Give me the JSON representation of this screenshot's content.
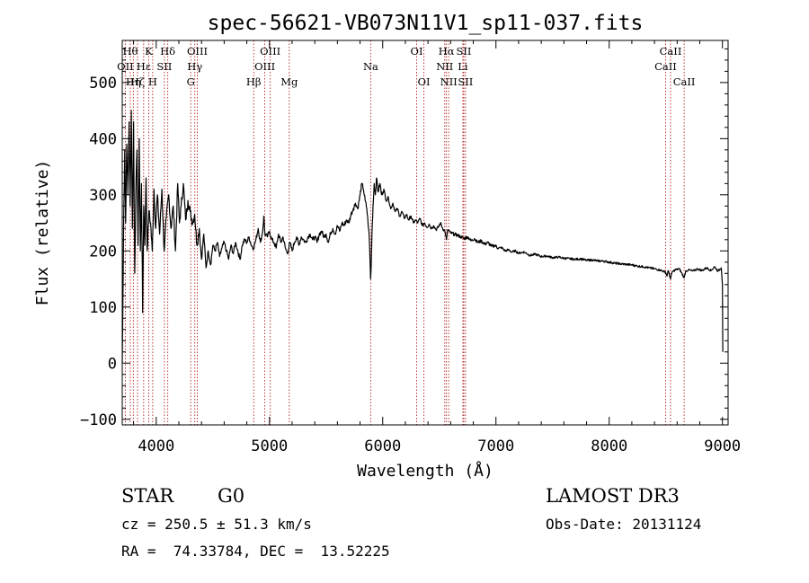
{
  "chart_data": {
    "type": "line",
    "title": "spec-56621-VB073N11V1_sp11-037.fits",
    "xlabel": "Wavelength (Å)",
    "ylabel": "Flux (relative)",
    "xlim": [
      3700,
      9050
    ],
    "ylim": [
      -110,
      575
    ],
    "xticks": [
      4000,
      5000,
      6000,
      7000,
      8000,
      9000
    ],
    "xtick_labels": [
      "4000",
      "5000",
      "6000",
      "7000",
      "8000",
      "9000"
    ],
    "yticks": [
      -100,
      0,
      100,
      200,
      300,
      400,
      500
    ],
    "ytick_labels": [
      "−100",
      "0",
      "100",
      "200",
      "300",
      "400",
      "500"
    ],
    "spectrum_points": [
      [
        3700,
        0
      ],
      [
        3705,
        90
      ],
      [
        3712,
        240
      ],
      [
        3722,
        380
      ],
      [
        3730,
        250
      ],
      [
        3740,
        390
      ],
      [
        3750,
        300
      ],
      [
        3760,
        430
      ],
      [
        3770,
        280
      ],
      [
        3780,
        450
      ],
      [
        3790,
        240
      ],
      [
        3800,
        430
      ],
      [
        3810,
        160
      ],
      [
        3820,
        300
      ],
      [
        3830,
        380
      ],
      [
        3840,
        210
      ],
      [
        3850,
        400
      ],
      [
        3860,
        200
      ],
      [
        3870,
        320
      ],
      [
        3880,
        90
      ],
      [
        3890,
        280
      ],
      [
        3900,
        210
      ],
      [
        3910,
        330
      ],
      [
        3920,
        200
      ],
      [
        3935,
        270
      ],
      [
        3950,
        250
      ],
      [
        3965,
        200
      ],
      [
        3980,
        310
      ],
      [
        3995,
        240
      ],
      [
        4010,
        300
      ],
      [
        4030,
        230
      ],
      [
        4050,
        310
      ],
      [
        4070,
        200
      ],
      [
        4090,
        260
      ],
      [
        4110,
        300
      ],
      [
        4130,
        240
      ],
      [
        4150,
        280
      ],
      [
        4170,
        200
      ],
      [
        4190,
        320
      ],
      [
        4205,
        250
      ],
      [
        4220,
        280
      ],
      [
        4240,
        320
      ],
      [
        4260,
        255
      ],
      [
        4280,
        290
      ],
      [
        4300,
        270
      ],
      [
        4320,
        250
      ],
      [
        4340,
        265
      ],
      [
        4360,
        210
      ],
      [
        4380,
        240
      ],
      [
        4400,
        185
      ],
      [
        4420,
        230
      ],
      [
        4440,
        170
      ],
      [
        4460,
        200
      ],
      [
        4480,
        175
      ],
      [
        4500,
        210
      ],
      [
        4520,
        200
      ],
      [
        4540,
        215
      ],
      [
        4560,
        190
      ],
      [
        4580,
        205
      ],
      [
        4600,
        215
      ],
      [
        4620,
        200
      ],
      [
        4640,
        185
      ],
      [
        4660,
        210
      ],
      [
        4680,
        195
      ],
      [
        4700,
        215
      ],
      [
        4720,
        200
      ],
      [
        4740,
        185
      ],
      [
        4760,
        210
      ],
      [
        4780,
        220
      ],
      [
        4800,
        215
      ],
      [
        4820,
        225
      ],
      [
        4840,
        210
      ],
      [
        4860,
        205
      ],
      [
        4880,
        220
      ],
      [
        4900,
        240
      ],
      [
        4920,
        215
      ],
      [
        4940,
        235
      ],
      [
        4950,
        262
      ],
      [
        4960,
        230
      ],
      [
        4980,
        225
      ],
      [
        5000,
        235
      ],
      [
        5020,
        220
      ],
      [
        5040,
        215
      ],
      [
        5060,
        205
      ],
      [
        5080,
        230
      ],
      [
        5100,
        215
      ],
      [
        5120,
        225
      ],
      [
        5140,
        205
      ],
      [
        5160,
        195
      ],
      [
        5180,
        215
      ],
      [
        5200,
        200
      ],
      [
        5220,
        215
      ],
      [
        5240,
        225
      ],
      [
        5260,
        210
      ],
      [
        5280,
        225
      ],
      [
        5300,
        220
      ],
      [
        5320,
        215
      ],
      [
        5340,
        225
      ],
      [
        5360,
        230
      ],
      [
        5380,
        220
      ],
      [
        5400,
        225
      ],
      [
        5420,
        215
      ],
      [
        5440,
        230
      ],
      [
        5460,
        235
      ],
      [
        5480,
        225
      ],
      [
        5500,
        230
      ],
      [
        5520,
        215
      ],
      [
        5540,
        232
      ],
      [
        5560,
        240
      ],
      [
        5580,
        230
      ],
      [
        5600,
        245
      ],
      [
        5620,
        235
      ],
      [
        5640,
        250
      ],
      [
        5660,
        245
      ],
      [
        5680,
        255
      ],
      [
        5700,
        250
      ],
      [
        5720,
        265
      ],
      [
        5740,
        275
      ],
      [
        5760,
        285
      ],
      [
        5780,
        275
      ],
      [
        5800,
        300
      ],
      [
        5815,
        320
      ],
      [
        5830,
        310
      ],
      [
        5845,
        290
      ],
      [
        5860,
        275
      ],
      [
        5870,
        250
      ],
      [
        5880,
        230
      ],
      [
        5890,
        170
      ],
      [
        5893,
        150
      ],
      [
        5898,
        170
      ],
      [
        5905,
        230
      ],
      [
        5915,
        280
      ],
      [
        5925,
        320
      ],
      [
        5935,
        300
      ],
      [
        5945,
        330
      ],
      [
        5960,
        305
      ],
      [
        5975,
        320
      ],
      [
        5990,
        300
      ],
      [
        6010,
        310
      ],
      [
        6030,
        290
      ],
      [
        6050,
        295
      ],
      [
        6070,
        275
      ],
      [
        6090,
        285
      ],
      [
        6110,
        270
      ],
      [
        6130,
        275
      ],
      [
        6150,
        262
      ],
      [
        6170,
        270
      ],
      [
        6190,
        258
      ],
      [
        6210,
        265
      ],
      [
        6230,
        255
      ],
      [
        6250,
        262
      ],
      [
        6270,
        250
      ],
      [
        6290,
        255
      ],
      [
        6310,
        250
      ],
      [
        6330,
        258
      ],
      [
        6350,
        245
      ],
      [
        6370,
        250
      ],
      [
        6390,
        242
      ],
      [
        6410,
        248
      ],
      [
        6430,
        240
      ],
      [
        6450,
        245
      ],
      [
        6470,
        238
      ],
      [
        6490,
        242
      ],
      [
        6510,
        250
      ],
      [
        6530,
        240
      ],
      [
        6550,
        235
      ],
      [
        6563,
        220
      ],
      [
        6575,
        238
      ],
      [
        6600,
        232
      ],
      [
        6630,
        230
      ],
      [
        6660,
        228
      ],
      [
        6690,
        225
      ],
      [
        6720,
        222
      ],
      [
        6750,
        225
      ],
      [
        6780,
        218
      ],
      [
        6810,
        222
      ],
      [
        6840,
        215
      ],
      [
        6870,
        218
      ],
      [
        6900,
        212
      ],
      [
        6930,
        215
      ],
      [
        6960,
        208
      ],
      [
        6990,
        210
      ],
      [
        7020,
        205
      ],
      [
        7050,
        206
      ],
      [
        7080,
        200
      ],
      [
        7110,
        202
      ],
      [
        7140,
        198
      ],
      [
        7170,
        200
      ],
      [
        7200,
        196
      ],
      [
        7250,
        198
      ],
      [
        7300,
        192
      ],
      [
        7350,
        194
      ],
      [
        7400,
        190
      ],
      [
        7450,
        191
      ],
      [
        7500,
        188
      ],
      [
        7550,
        189
      ],
      [
        7600,
        187
      ],
      [
        7650,
        186
      ],
      [
        7700,
        185
      ],
      [
        7750,
        186
      ],
      [
        7800,
        183
      ],
      [
        7850,
        184
      ],
      [
        7900,
        182
      ],
      [
        7950,
        182
      ],
      [
        8000,
        180
      ],
      [
        8050,
        178
      ],
      [
        8100,
        177
      ],
      [
        8150,
        176
      ],
      [
        8200,
        175
      ],
      [
        8250,
        173
      ],
      [
        8300,
        172
      ],
      [
        8350,
        170
      ],
      [
        8400,
        168
      ],
      [
        8450,
        166
      ],
      [
        8498,
        162
      ],
      [
        8510,
        155
      ],
      [
        8520,
        165
      ],
      [
        8542,
        150
      ],
      [
        8555,
        162
      ],
      [
        8580,
        166
      ],
      [
        8620,
        168
      ],
      [
        8662,
        152
      ],
      [
        8675,
        164
      ],
      [
        8700,
        166
      ],
      [
        8740,
        164
      ],
      [
        8780,
        168
      ],
      [
        8820,
        165
      ],
      [
        8860,
        170
      ],
      [
        8900,
        165
      ],
      [
        8930,
        172
      ],
      [
        8960,
        164
      ],
      [
        8990,
        170
      ],
      [
        9000,
        140
      ],
      [
        9003,
        20
      ]
    ],
    "line_markers": [
      {
        "name": "OII",
        "wavelength": 3727,
        "row": 2
      },
      {
        "name": "Hθ",
        "wavelength": 3771,
        "row": 1
      },
      {
        "name": "Hη",
        "wavelength": 3798,
        "row": 3
      },
      {
        "name": "Hζ",
        "wavelength": 3835,
        "row": 3
      },
      {
        "name": "Hε",
        "wavelength": 3889,
        "row": 2
      },
      {
        "name": "K",
        "wavelength": 3934,
        "row": 1
      },
      {
        "name": "H",
        "wavelength": 3969,
        "row": 3
      },
      {
        "name": "SII",
        "wavelength": 4072,
        "row": 2
      },
      {
        "name": "Hδ",
        "wavelength": 4102,
        "row": 1
      },
      {
        "name": "G",
        "wavelength": 4305,
        "row": 3
      },
      {
        "name": "Hγ",
        "wavelength": 4341,
        "row": 2
      },
      {
        "name": "OIII",
        "wavelength": 4363,
        "row": 1
      },
      {
        "name": "Hβ",
        "wavelength": 4861,
        "row": 3
      },
      {
        "name": "OIII",
        "wavelength": 4959,
        "row": 2
      },
      {
        "name": "OIII",
        "wavelength": 5007,
        "row": 1
      },
      {
        "name": "Mg",
        "wavelength": 5175,
        "row": 3
      },
      {
        "name": "Na",
        "wavelength": 5894,
        "row": 2
      },
      {
        "name": "OI",
        "wavelength": 6300,
        "row": 1
      },
      {
        "name": "OI",
        "wavelength": 6364,
        "row": 3
      },
      {
        "name": "NII",
        "wavelength": 6548,
        "row": 2
      },
      {
        "name": "Hα",
        "wavelength": 6563,
        "row": 1
      },
      {
        "name": "NII",
        "wavelength": 6583,
        "row": 3
      },
      {
        "name": "Li",
        "wavelength": 6708,
        "row": 2
      },
      {
        "name": "SII",
        "wavelength": 6716,
        "row": 1
      },
      {
        "name": "SII",
        "wavelength": 6731,
        "row": 3
      },
      {
        "name": "CaII",
        "wavelength": 8498,
        "row": 2
      },
      {
        "name": "CaII",
        "wavelength": 8542,
        "row": 1
      },
      {
        "name": "CaII",
        "wavelength": 8662,
        "row": 3
      }
    ],
    "marker_color": "#b22222"
  },
  "info": {
    "object_class": "STAR",
    "subclass": "G0",
    "survey": "LAMOST DR3",
    "redshift_line": "cz = 250.5 ± 51.3 km/s",
    "obs_date_line": "Obs-Date: 20131124",
    "coords_line": "RA =  74.33784, DEC =  13.52225"
  }
}
